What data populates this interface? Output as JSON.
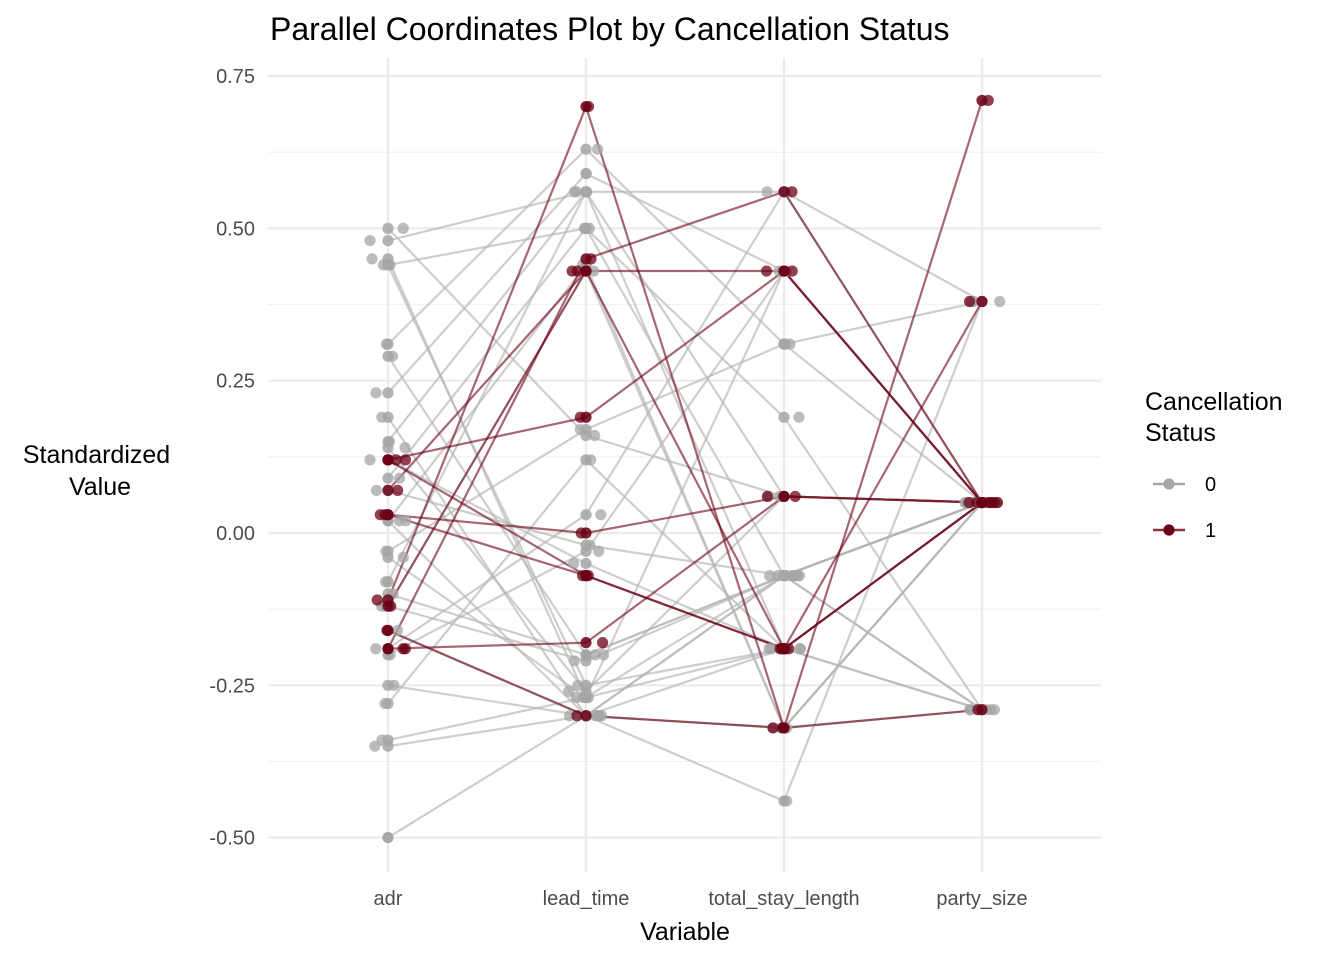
{
  "chart_data": {
    "type": "line",
    "title": "Parallel Coordinates Plot by Cancellation Status",
    "xlabel": "Variable",
    "ylabel_lines": [
      "Standardized",
      "Value"
    ],
    "categories": [
      "adr",
      "lead_time",
      "total_stay_length",
      "party_size"
    ],
    "y_ticks": [
      "0.75",
      "0.50",
      "0.25",
      "0.00",
      "-0.25",
      "-0.50"
    ],
    "ylim": [
      -0.55,
      0.77
    ],
    "grid": true,
    "legend": {
      "title_lines": [
        "Cancellation",
        "Status"
      ],
      "position": "right",
      "entries": [
        {
          "label": "0",
          "color": "#a6a6a6"
        },
        {
          "label": "1",
          "color": "#6b0016"
        }
      ]
    },
    "series": [
      {
        "group": "0",
        "values": [
          0.48,
          0.56,
          0.56,
          0.38
        ]
      },
      {
        "group": "0",
        "values": [
          0.5,
          0.16,
          0.06,
          0.05
        ]
      },
      {
        "group": "0",
        "values": [
          0.45,
          -0.27,
          0.43,
          0.05
        ]
      },
      {
        "group": "0",
        "values": [
          0.44,
          0.5,
          -0.07,
          0.05
        ]
      },
      {
        "group": "0",
        "values": [
          0.44,
          -0.25,
          -0.19,
          -0.29
        ]
      },
      {
        "group": "0",
        "values": [
          0.31,
          0.63,
          0.31,
          0.05
        ]
      },
      {
        "group": "0",
        "values": [
          0.29,
          -0.2,
          -0.07,
          0.05
        ]
      },
      {
        "group": "0",
        "values": [
          0.23,
          0.59,
          0.43,
          0.05
        ]
      },
      {
        "group": "0",
        "values": [
          0.19,
          -0.3,
          -0.32,
          -0.29
        ]
      },
      {
        "group": "0",
        "values": [
          0.15,
          0.56,
          -0.19,
          0.05
        ]
      },
      {
        "group": "0",
        "values": [
          0.14,
          -0.26,
          0.06,
          0.05
        ]
      },
      {
        "group": "0",
        "values": [
          0.09,
          0.5,
          0.19,
          -0.29
        ]
      },
      {
        "group": "0",
        "values": [
          0.07,
          -0.02,
          -0.07,
          0.05
        ]
      },
      {
        "group": "0",
        "values": [
          0.02,
          0.44,
          -0.32,
          0.05
        ]
      },
      {
        "group": "0",
        "values": [
          0.02,
          -0.3,
          -0.07,
          0.05
        ]
      },
      {
        "group": "0",
        "values": [
          -0.03,
          0.17,
          0.31,
          0.38
        ]
      },
      {
        "group": "0",
        "values": [
          -0.04,
          -0.27,
          -0.19,
          0.05
        ]
      },
      {
        "group": "0",
        "values": [
          -0.08,
          0.56,
          0.06,
          0.05
        ]
      },
      {
        "group": "0",
        "values": [
          -0.1,
          -0.2,
          -0.07,
          -0.29
        ]
      },
      {
        "group": "0",
        "values": [
          -0.12,
          0.43,
          -0.32,
          0.05
        ]
      },
      {
        "group": "0",
        "values": [
          -0.16,
          -0.3,
          -0.19,
          0.05
        ]
      },
      {
        "group": "0",
        "values": [
          -0.2,
          -0.03,
          0.43,
          0.05
        ]
      },
      {
        "group": "0",
        "values": [
          -0.25,
          -0.3,
          -0.07,
          0.05
        ]
      },
      {
        "group": "0",
        "values": [
          -0.28,
          0.12,
          -0.19,
          -0.29
        ]
      },
      {
        "group": "0",
        "values": [
          -0.35,
          -0.3,
          -0.32,
          0.05
        ]
      },
      {
        "group": "0",
        "values": [
          -0.34,
          -0.27,
          -0.07,
          0.05
        ]
      },
      {
        "group": "0",
        "values": [
          -0.5,
          -0.3,
          -0.44,
          0.38
        ]
      },
      {
        "group": "0",
        "values": [
          0.12,
          -0.05,
          -0.19,
          0.05
        ]
      },
      {
        "group": "0",
        "values": [
          -0.19,
          0.03,
          0.56,
          0.05
        ]
      },
      {
        "group": "0",
        "values": [
          -0.12,
          -0.21,
          -0.07,
          -0.29
        ]
      },
      {
        "group": "1",
        "values": [
          0.12,
          0.19,
          0.43,
          0.05
        ]
      },
      {
        "group": "1",
        "values": [
          0.12,
          -0.07,
          -0.19,
          0.05
        ]
      },
      {
        "group": "1",
        "values": [
          0.03,
          0.0,
          0.06,
          0.05
        ]
      },
      {
        "group": "1",
        "values": [
          0.03,
          -0.07,
          -0.19,
          0.38
        ]
      },
      {
        "group": "1",
        "values": [
          -0.11,
          0.7,
          -0.32,
          -0.29
        ]
      },
      {
        "group": "1",
        "values": [
          -0.12,
          0.43,
          0.43,
          0.05
        ]
      },
      {
        "group": "1",
        "values": [
          -0.19,
          0.45,
          0.56,
          0.05
        ]
      },
      {
        "group": "1",
        "values": [
          -0.19,
          -0.18,
          0.06,
          0.05
        ]
      },
      {
        "group": "1",
        "values": [
          -0.16,
          -0.3,
          -0.32,
          0.71
        ]
      },
      {
        "group": "1",
        "values": [
          0.07,
          0.43,
          -0.19,
          0.05
        ]
      }
    ]
  }
}
